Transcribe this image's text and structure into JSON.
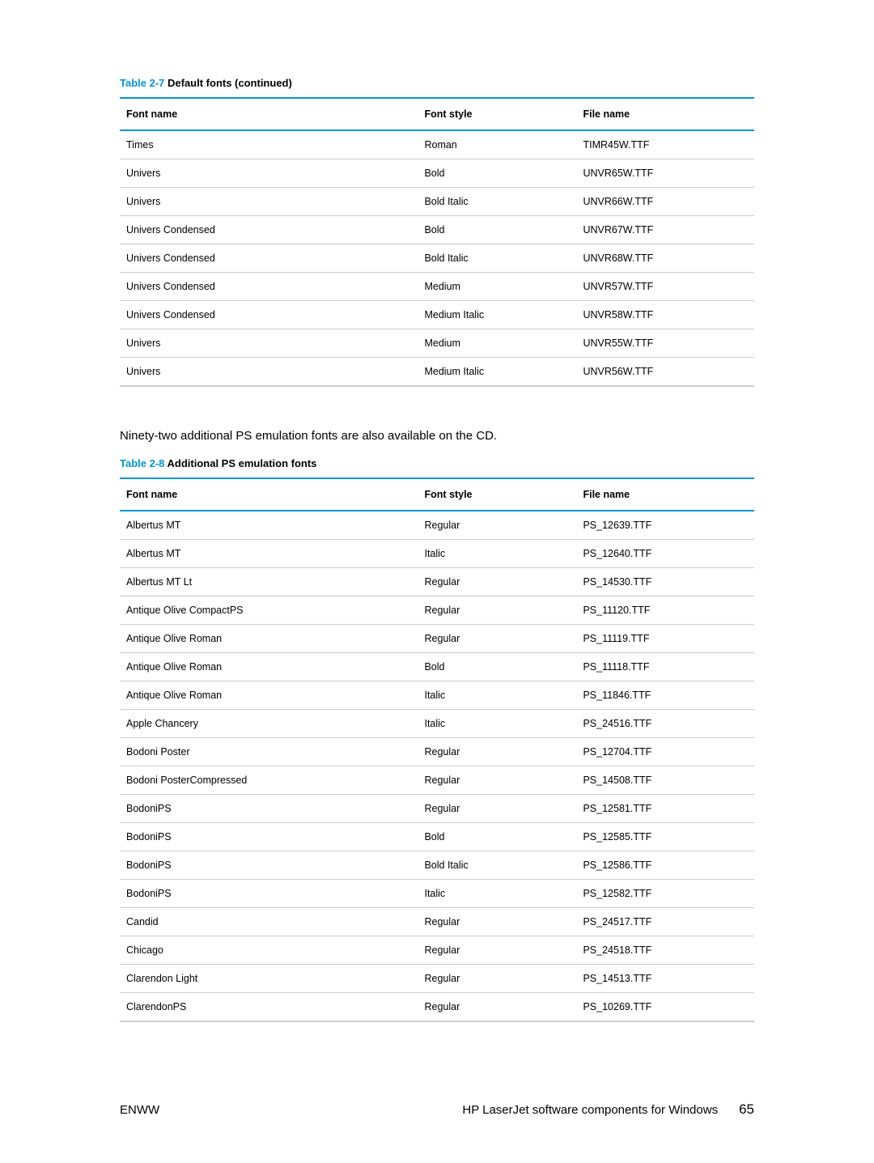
{
  "table1": {
    "caption_num": "Table 2-7",
    "caption_title": "  Default fonts (continued)",
    "columns": [
      "Font name",
      "Font style",
      "File name"
    ],
    "rows": [
      [
        "Times",
        "Roman",
        "TIMR45W.TTF"
      ],
      [
        "Univers",
        "Bold",
        "UNVR65W.TTF"
      ],
      [
        "Univers",
        "Bold Italic",
        "UNVR66W.TTF"
      ],
      [
        "Univers Condensed",
        "Bold",
        "UNVR67W.TTF"
      ],
      [
        "Univers Condensed",
        "Bold Italic",
        "UNVR68W.TTF"
      ],
      [
        "Univers Condensed",
        "Medium",
        "UNVR57W.TTF"
      ],
      [
        "Univers Condensed",
        "Medium Italic",
        "UNVR58W.TTF"
      ],
      [
        "Univers",
        "Medium",
        "UNVR55W.TTF"
      ],
      [
        "Univers",
        "Medium Italic",
        "UNVR56W.TTF"
      ]
    ]
  },
  "interstitial_text": "Ninety-two additional PS emulation fonts are also available on the CD.",
  "table2": {
    "caption_num": "Table 2-8",
    "caption_title": "  Additional PS emulation fonts",
    "columns": [
      "Font name",
      "Font style",
      "File name"
    ],
    "rows": [
      [
        "Albertus MT",
        "Regular",
        "PS_12639.TTF"
      ],
      [
        "Albertus MT",
        "Italic",
        "PS_12640.TTF"
      ],
      [
        "Albertus MT Lt",
        "Regular",
        "PS_14530.TTF"
      ],
      [
        "Antique Olive CompactPS",
        "Regular",
        "PS_11120.TTF"
      ],
      [
        "Antique Olive Roman",
        "Regular",
        "PS_11119.TTF"
      ],
      [
        "Antique Olive Roman",
        "Bold",
        "PS_11118.TTF"
      ],
      [
        "Antique Olive Roman",
        "Italic",
        "PS_11846.TTF"
      ],
      [
        "Apple Chancery",
        "Italic",
        "PS_24516.TTF"
      ],
      [
        "Bodoni Poster",
        "Regular",
        "PS_12704.TTF"
      ],
      [
        "Bodoni PosterCompressed",
        "Regular",
        "PS_14508.TTF"
      ],
      [
        "BodoniPS",
        "Regular",
        "PS_12581.TTF"
      ],
      [
        "BodoniPS",
        "Bold",
        "PS_12585.TTF"
      ],
      [
        "BodoniPS",
        "Bold Italic",
        "PS_12586.TTF"
      ],
      [
        "BodoniPS",
        "Italic",
        "PS_12582.TTF"
      ],
      [
        "Candid",
        "Regular",
        "PS_24517.TTF"
      ],
      [
        "Chicago",
        "Regular",
        "PS_24518.TTF"
      ],
      [
        "Clarendon Light",
        "Regular",
        "PS_14513.TTF"
      ],
      [
        "ClarendonPS",
        "Regular",
        "PS_10269.TTF"
      ]
    ]
  },
  "footer": {
    "left": "ENWW",
    "right": "HP LaserJet software components for Windows",
    "page": "65"
  }
}
